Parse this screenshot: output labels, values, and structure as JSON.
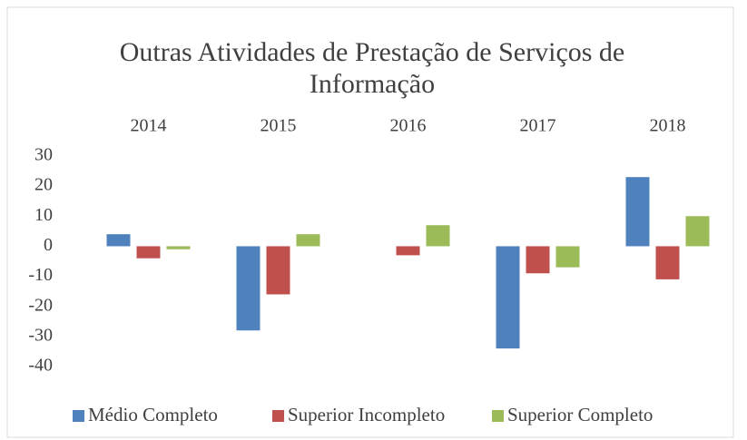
{
  "chart_data": {
    "type": "bar",
    "title": [
      "Outras Atividades de Prestação de Serviços de",
      "Informação"
    ],
    "categories": [
      "2014",
      "2015",
      "2016",
      "2017",
      "2018"
    ],
    "series": [
      {
        "name": "Médio Completo",
        "color": "#4f81bd",
        "values": [
          4,
          -28,
          0,
          -34,
          23
        ]
      },
      {
        "name": "Superior Incompleto",
        "color": "#c0504d",
        "values": [
          -4,
          -16,
          -3,
          -9,
          -11
        ]
      },
      {
        "name": "Superior Completo",
        "color": "#9bbb59",
        "values": [
          -1,
          4,
          7,
          -7,
          10
        ]
      }
    ],
    "ylim": [
      -40,
      30
    ],
    "yticks": [
      -40,
      -30,
      -20,
      -10,
      0,
      10,
      20,
      30
    ],
    "grid": false
  }
}
